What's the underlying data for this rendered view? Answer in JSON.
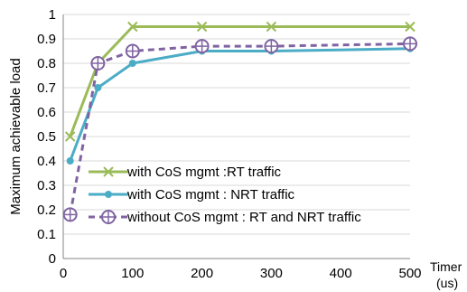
{
  "chart_data": {
    "type": "line",
    "title": "",
    "xlabel": "Timer (us)",
    "ylabel": "Maximum achievable load",
    "xlim": [
      0,
      500
    ],
    "ylim": [
      0,
      1
    ],
    "xticks": [
      0,
      100,
      200,
      300,
      400,
      500
    ],
    "yticks": [
      0,
      0.1,
      0.2,
      0.3,
      0.4,
      0.5,
      0.6,
      0.7,
      0.8,
      0.9,
      1
    ],
    "grid": "horizontal",
    "legend_position": "lower-left",
    "series": [
      {
        "name": "with CoS mgmt :RT traffic",
        "color": "#9bbb59",
        "marker": "x-marker",
        "dashed": false,
        "x": [
          10,
          50,
          100,
          200,
          300,
          500
        ],
        "y": [
          0.5,
          0.8,
          0.95,
          0.95,
          0.95,
          0.95
        ]
      },
      {
        "name": "with CoS mgmt : NRT traffic",
        "color": "#4bacc6",
        "marker": "dot-marker",
        "dashed": false,
        "x": [
          10,
          50,
          100,
          200,
          300,
          500
        ],
        "y": [
          0.4,
          0.7,
          0.8,
          0.85,
          0.85,
          0.86
        ]
      },
      {
        "name": "without CoS mgmt : RT and NRT traffic",
        "color": "#8064a2",
        "marker": "circle-plus-marker",
        "dashed": true,
        "x": [
          10,
          50,
          100,
          200,
          300,
          500
        ],
        "y": [
          0.18,
          0.8,
          0.85,
          0.87,
          0.87,
          0.88
        ]
      }
    ]
  }
}
